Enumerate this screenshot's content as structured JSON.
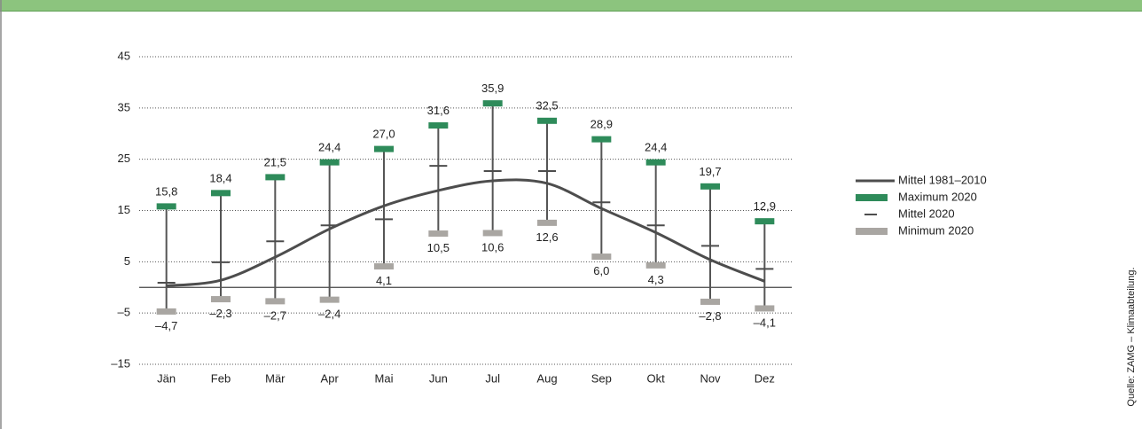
{
  "chart_data": {
    "type": "range",
    "categories": [
      "Jän",
      "Feb",
      "Mär",
      "Apr",
      "Mai",
      "Jun",
      "Jul",
      "Aug",
      "Sep",
      "Okt",
      "Nov",
      "Dez"
    ],
    "series": [
      {
        "name": "Mittel 1981–2010",
        "color": "#4d4d4d",
        "marker": "line",
        "values": [
          0.3,
          1.4,
          5.9,
          11.4,
          15.9,
          18.9,
          20.8,
          20.3,
          15.4,
          10.7,
          5.4,
          1.2
        ]
      },
      {
        "name": "Maximum 2020",
        "color": "#2e8b5a",
        "marker": "bar",
        "values": [
          15.8,
          18.4,
          21.5,
          24.4,
          27.0,
          31.6,
          35.9,
          32.5,
          28.9,
          24.4,
          19.7,
          12.9
        ],
        "value_labels": [
          "15,8",
          "18,4",
          "21,5",
          "24,4",
          "27,0",
          "31,6",
          "35,9",
          "32,5",
          "28,9",
          "24,4",
          "19,7",
          "12,9"
        ]
      },
      {
        "name": "Mittel 2020",
        "color": "#4d4d4d",
        "marker": "dash",
        "values": [
          0.9,
          4.9,
          9.0,
          12.1,
          13.3,
          23.7,
          22.7,
          22.7,
          16.6,
          12.1,
          8.1,
          3.6
        ]
      },
      {
        "name": "Minimum 2020",
        "color": "#a9a6a2",
        "marker": "bar",
        "values": [
          -4.7,
          -2.3,
          -2.7,
          -2.4,
          4.1,
          10.5,
          10.6,
          12.6,
          6.0,
          4.3,
          -2.8,
          -4.1
        ],
        "value_labels": [
          "–4,7",
          "–2,3",
          "–2,7",
          "–2,4",
          "4,1",
          "10,5",
          "10,6",
          "12,6",
          "6,0",
          "4,3",
          "–2,8",
          "–4,1"
        ]
      }
    ],
    "ylim": [
      -15,
      45
    ],
    "yticks": [
      45,
      35,
      25,
      15,
      5,
      {
        "value": -5,
        "label": "–5"
      },
      {
        "value": -15,
        "label": "–15"
      }
    ],
    "grid": true,
    "legend": "right",
    "source": "Quelle: ZAMG – Klimaabteilung."
  }
}
